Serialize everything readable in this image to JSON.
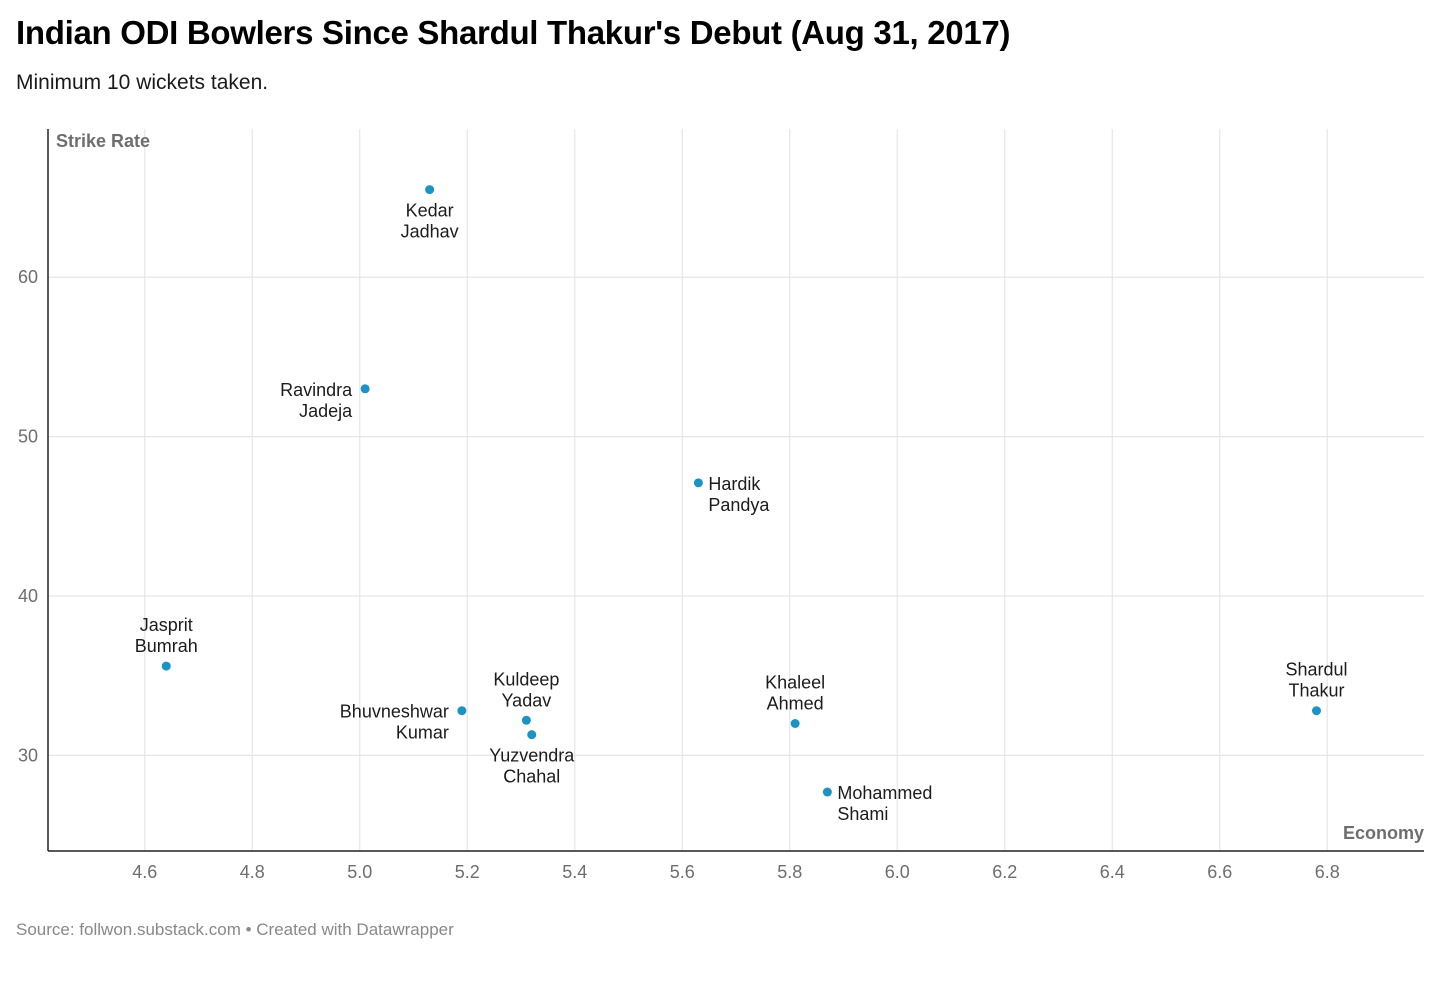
{
  "header": {
    "title": "Indian ODI Bowlers Since Shardul Thakur's Debut (Aug 31, 2017)",
    "subtitle": "Minimum 10 wickets taken."
  },
  "footer": {
    "source": "Source: follwon.substack.com • Created with Datawrapper"
  },
  "colors": {
    "point": "#1d93c4",
    "grid": "#e6e6e6",
    "axis": "#222222"
  },
  "chart_data": {
    "type": "scatter",
    "title": "Indian ODI Bowlers Since Shardul Thakur's Debut (Aug 31, 2017)",
    "subtitle": "Minimum 10 wickets taken.",
    "xlabel": "Economy",
    "ylabel": "Strike Rate",
    "xlim": [
      4.42,
      6.98
    ],
    "ylim": [
      24.0,
      69.3
    ],
    "xticks": [
      "4.6",
      "4.8",
      "5.0",
      "5.2",
      "5.4",
      "5.6",
      "5.8",
      "6.0",
      "6.2",
      "6.4",
      "6.6",
      "6.8"
    ],
    "yticks": [
      "30",
      "40",
      "50",
      "60"
    ],
    "grid": true,
    "points": [
      {
        "name": "Kedar Jadhav",
        "label_lines": [
          "Kedar",
          "Jadhav"
        ],
        "label_pos": "below",
        "x": 5.13,
        "y": 65.5
      },
      {
        "name": "Ravindra Jadeja",
        "label_lines": [
          "Ravindra",
          "Jadeja"
        ],
        "label_pos": "left",
        "x": 5.01,
        "y": 53.0
      },
      {
        "name": "Hardik Pandya",
        "label_lines": [
          "Hardik",
          "Pandya"
        ],
        "label_pos": "right",
        "x": 5.63,
        "y": 47.1
      },
      {
        "name": "Jasprit Bumrah",
        "label_lines": [
          "Jasprit",
          "Bumrah"
        ],
        "label_pos": "above",
        "x": 4.64,
        "y": 35.6
      },
      {
        "name": "Bhuvneshwar Kumar",
        "label_lines": [
          "Bhuvneshwar",
          "Kumar"
        ],
        "label_pos": "left",
        "x": 5.19,
        "y": 32.8
      },
      {
        "name": "Kuldeep Yadav",
        "label_lines": [
          "Kuldeep",
          "Yadav"
        ],
        "label_pos": "above",
        "x": 5.31,
        "y": 32.2
      },
      {
        "name": "Yuzvendra Chahal",
        "label_lines": [
          "Yuzvendra",
          "Chahal"
        ],
        "label_pos": "below",
        "x": 5.32,
        "y": 31.3
      },
      {
        "name": "Khaleel Ahmed",
        "label_lines": [
          "Khaleel",
          "Ahmed"
        ],
        "label_pos": "above",
        "x": 5.81,
        "y": 32.0
      },
      {
        "name": "Mohammed Shami",
        "label_lines": [
          "Mohammed",
          "Shami"
        ],
        "label_pos": "right",
        "x": 5.87,
        "y": 27.7
      },
      {
        "name": "Shardul Thakur",
        "label_lines": [
          "Shardul",
          "Thakur"
        ],
        "label_pos": "above",
        "x": 6.78,
        "y": 32.8
      }
    ]
  }
}
